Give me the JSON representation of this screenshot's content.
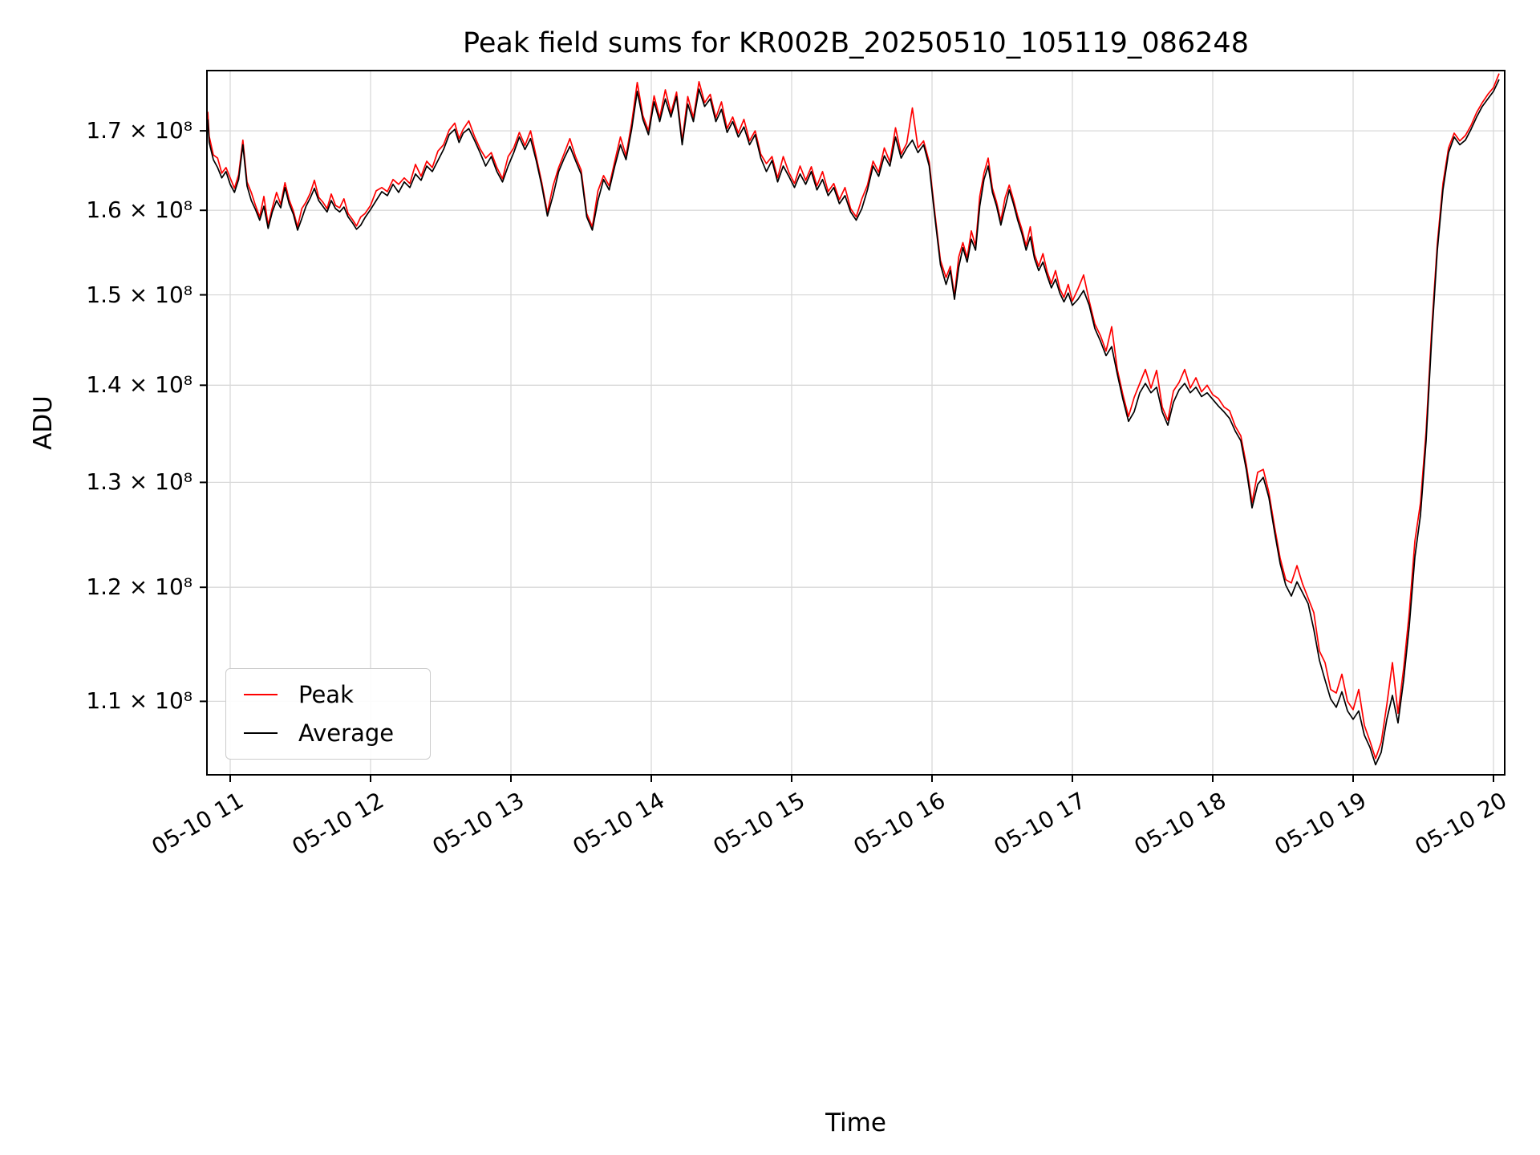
{
  "title": "Peak field sums for KR002B_20250510_105119_086248",
  "legend": {
    "position": "lower left",
    "items": [
      {
        "label": "Peak",
        "color": "#ff0000"
      },
      {
        "label": "Average",
        "color": "#000000"
      }
    ]
  },
  "chart_data": {
    "type": "line",
    "title": "Peak field sums for KR002B_20250510_105119_086248",
    "xlabel": "Time",
    "ylabel": "ADU",
    "yscale": "log",
    "grid": true,
    "grid_color": "#d9d9d9",
    "legend_position": "lower left",
    "x_unit": "decimal hours on 2025-05-10",
    "y_scale_factor": 100000000,
    "xlim": [
      10.834,
      20.08
    ],
    "ylim": [
      1.04,
      1.78
    ],
    "x_ticks": [
      11,
      12,
      13,
      14,
      15,
      16,
      17,
      18,
      19,
      20
    ],
    "x_tick_labels": [
      "05-10 11",
      "05-10 12",
      "05-10 13",
      "05-10 14",
      "05-10 15",
      "05-10 16",
      "05-10 17",
      "05-10 18",
      "05-10 19",
      "05-10 20"
    ],
    "y_ticks": [
      1.1,
      1.2,
      1.3,
      1.4,
      1.5,
      1.6,
      1.7
    ],
    "y_tick_labels": [
      "1.1 × 10⁸",
      "1.2 × 10⁸",
      "1.3 × 10⁸",
      "1.4 × 10⁸",
      "1.5 × 10⁸",
      "1.6 × 10⁸",
      "1.7 × 10⁸"
    ],
    "x": [
      10.84,
      10.85,
      10.88,
      10.91,
      10.94,
      10.97,
      11.0,
      11.03,
      11.06,
      11.09,
      11.12,
      11.15,
      11.18,
      11.21,
      11.24,
      11.27,
      11.3,
      11.33,
      11.36,
      11.39,
      11.42,
      11.45,
      11.48,
      11.51,
      11.54,
      11.57,
      11.6,
      11.63,
      11.66,
      11.69,
      11.72,
      11.75,
      11.78,
      11.81,
      11.84,
      11.87,
      11.9,
      11.93,
      11.96,
      12.0,
      12.04,
      12.08,
      12.12,
      12.16,
      12.2,
      12.24,
      12.28,
      12.32,
      12.36,
      12.4,
      12.44,
      12.48,
      12.52,
      12.56,
      12.6,
      12.63,
      12.66,
      12.7,
      12.74,
      12.78,
      12.82,
      12.86,
      12.9,
      12.94,
      12.98,
      13.02,
      13.06,
      13.1,
      13.14,
      13.18,
      13.22,
      13.26,
      13.3,
      13.34,
      13.38,
      13.42,
      13.46,
      13.5,
      13.54,
      13.58,
      13.62,
      13.66,
      13.7,
      13.74,
      13.78,
      13.82,
      13.86,
      13.9,
      13.94,
      13.98,
      14.02,
      14.06,
      14.1,
      14.14,
      14.18,
      14.22,
      14.26,
      14.3,
      14.34,
      14.38,
      14.42,
      14.46,
      14.5,
      14.54,
      14.58,
      14.62,
      14.66,
      14.7,
      14.74,
      14.78,
      14.82,
      14.86,
      14.9,
      14.94,
      14.98,
      15.02,
      15.06,
      15.1,
      15.14,
      15.18,
      15.22,
      15.26,
      15.3,
      15.34,
      15.38,
      15.42,
      15.46,
      15.5,
      15.54,
      15.58,
      15.62,
      15.66,
      15.7,
      15.74,
      15.78,
      15.82,
      15.86,
      15.9,
      15.94,
      15.98,
      16.02,
      16.06,
      16.1,
      16.13,
      16.16,
      16.19,
      16.22,
      16.25,
      16.28,
      16.31,
      16.34,
      16.37,
      16.4,
      16.43,
      16.46,
      16.49,
      16.52,
      16.55,
      16.58,
      16.61,
      16.64,
      16.67,
      16.7,
      16.73,
      16.76,
      16.79,
      16.82,
      16.85,
      16.88,
      16.91,
      16.94,
      16.97,
      17.0,
      17.04,
      17.08,
      17.12,
      17.16,
      17.2,
      17.24,
      17.28,
      17.32,
      17.36,
      17.4,
      17.44,
      17.48,
      17.52,
      17.56,
      17.6,
      17.64,
      17.68,
      17.72,
      17.76,
      17.8,
      17.84,
      17.88,
      17.92,
      17.96,
      18.0,
      18.04,
      18.08,
      18.12,
      18.16,
      18.2,
      18.24,
      18.28,
      18.32,
      18.36,
      18.4,
      18.44,
      18.48,
      18.52,
      18.56,
      18.6,
      18.64,
      18.68,
      18.72,
      18.76,
      18.8,
      18.84,
      18.88,
      18.92,
      18.96,
      19.0,
      19.04,
      19.08,
      19.12,
      19.16,
      19.2,
      19.24,
      19.28,
      19.32,
      19.36,
      19.4,
      19.44,
      19.48,
      19.52,
      19.56,
      19.6,
      19.64,
      19.68,
      19.72,
      19.76,
      19.8,
      19.84,
      19.88,
      19.92,
      19.96,
      20.0,
      20.04
    ],
    "series": [
      {
        "name": "Peak",
        "color": "#ff0000",
        "values": [
          1.725,
          1.693,
          1.669,
          1.665,
          1.646,
          1.653,
          1.64,
          1.627,
          1.644,
          1.688,
          1.635,
          1.622,
          1.606,
          1.592,
          1.617,
          1.582,
          1.603,
          1.622,
          1.607,
          1.634,
          1.613,
          1.599,
          1.58,
          1.602,
          1.61,
          1.621,
          1.637,
          1.616,
          1.61,
          1.602,
          1.62,
          1.606,
          1.603,
          1.614,
          1.596,
          1.589,
          1.581,
          1.592,
          1.596,
          1.606,
          1.624,
          1.628,
          1.623,
          1.638,
          1.632,
          1.64,
          1.633,
          1.657,
          1.642,
          1.661,
          1.653,
          1.674,
          1.682,
          1.701,
          1.71,
          1.69,
          1.702,
          1.713,
          1.693,
          1.677,
          1.665,
          1.672,
          1.653,
          1.639,
          1.667,
          1.678,
          1.698,
          1.681,
          1.7,
          1.667,
          1.634,
          1.597,
          1.63,
          1.653,
          1.671,
          1.69,
          1.667,
          1.65,
          1.596,
          1.58,
          1.624,
          1.643,
          1.63,
          1.661,
          1.692,
          1.668,
          1.71,
          1.764,
          1.72,
          1.7,
          1.746,
          1.717,
          1.754,
          1.723,
          1.751,
          1.687,
          1.745,
          1.717,
          1.765,
          1.737,
          1.748,
          1.717,
          1.738,
          1.703,
          1.718,
          1.697,
          1.715,
          1.687,
          1.7,
          1.67,
          1.658,
          1.667,
          1.64,
          1.667,
          1.647,
          1.633,
          1.655,
          1.637,
          1.654,
          1.63,
          1.648,
          1.623,
          1.633,
          1.613,
          1.628,
          1.602,
          1.592,
          1.614,
          1.631,
          1.661,
          1.647,
          1.678,
          1.66,
          1.704,
          1.67,
          1.684,
          1.73,
          1.678,
          1.687,
          1.66,
          1.597,
          1.54,
          1.52,
          1.533,
          1.499,
          1.544,
          1.561,
          1.543,
          1.575,
          1.557,
          1.617,
          1.646,
          1.665,
          1.627,
          1.61,
          1.587,
          1.615,
          1.631,
          1.613,
          1.593,
          1.577,
          1.557,
          1.58,
          1.547,
          1.533,
          1.548,
          1.527,
          1.513,
          1.528,
          1.507,
          1.497,
          1.512,
          1.493,
          1.507,
          1.523,
          1.493,
          1.467,
          1.454,
          1.437,
          1.464,
          1.417,
          1.39,
          1.367,
          1.387,
          1.402,
          1.417,
          1.397,
          1.416,
          1.377,
          1.363,
          1.394,
          1.403,
          1.417,
          1.397,
          1.408,
          1.393,
          1.4,
          1.39,
          1.386,
          1.377,
          1.373,
          1.357,
          1.347,
          1.317,
          1.28,
          1.31,
          1.313,
          1.29,
          1.257,
          1.227,
          1.207,
          1.204,
          1.22,
          1.203,
          1.19,
          1.177,
          1.143,
          1.133,
          1.11,
          1.107,
          1.123,
          1.1,
          1.093,
          1.11,
          1.08,
          1.067,
          1.053,
          1.066,
          1.097,
          1.133,
          1.09,
          1.128,
          1.177,
          1.243,
          1.28,
          1.352,
          1.462,
          1.56,
          1.633,
          1.678,
          1.697,
          1.687,
          1.694,
          1.707,
          1.724,
          1.737,
          1.748,
          1.757,
          1.776
        ]
      },
      {
        "name": "Average",
        "color": "#000000",
        "values": [
          1.715,
          1.685,
          1.663,
          1.653,
          1.64,
          1.648,
          1.632,
          1.622,
          1.638,
          1.682,
          1.63,
          1.612,
          1.601,
          1.588,
          1.605,
          1.578,
          1.598,
          1.612,
          1.603,
          1.628,
          1.608,
          1.595,
          1.576,
          1.59,
          1.605,
          1.615,
          1.627,
          1.612,
          1.605,
          1.598,
          1.612,
          1.602,
          1.598,
          1.604,
          1.592,
          1.585,
          1.577,
          1.582,
          1.591,
          1.601,
          1.612,
          1.623,
          1.618,
          1.632,
          1.622,
          1.635,
          1.628,
          1.645,
          1.637,
          1.655,
          1.648,
          1.662,
          1.676,
          1.695,
          1.702,
          1.685,
          1.697,
          1.703,
          1.688,
          1.672,
          1.655,
          1.667,
          1.648,
          1.635,
          1.655,
          1.672,
          1.692,
          1.676,
          1.69,
          1.662,
          1.63,
          1.593,
          1.618,
          1.648,
          1.665,
          1.68,
          1.662,
          1.645,
          1.592,
          1.576,
          1.612,
          1.638,
          1.625,
          1.655,
          1.682,
          1.663,
          1.702,
          1.752,
          1.715,
          1.695,
          1.738,
          1.712,
          1.742,
          1.718,
          1.745,
          1.682,
          1.735,
          1.712,
          1.755,
          1.732,
          1.742,
          1.712,
          1.728,
          1.698,
          1.712,
          1.692,
          1.705,
          1.682,
          1.695,
          1.665,
          1.648,
          1.662,
          1.635,
          1.655,
          1.642,
          1.628,
          1.645,
          1.632,
          1.648,
          1.625,
          1.638,
          1.618,
          1.628,
          1.608,
          1.618,
          1.598,
          1.588,
          1.602,
          1.625,
          1.655,
          1.642,
          1.668,
          1.655,
          1.692,
          1.665,
          1.678,
          1.688,
          1.672,
          1.682,
          1.655,
          1.592,
          1.535,
          1.512,
          1.528,
          1.495,
          1.532,
          1.555,
          1.538,
          1.565,
          1.552,
          1.605,
          1.638,
          1.655,
          1.622,
          1.605,
          1.582,
          1.603,
          1.625,
          1.608,
          1.588,
          1.572,
          1.552,
          1.568,
          1.542,
          1.528,
          1.538,
          1.522,
          1.508,
          1.518,
          1.502,
          1.492,
          1.502,
          1.488,
          1.495,
          1.505,
          1.488,
          1.462,
          1.448,
          1.432,
          1.442,
          1.412,
          1.385,
          1.362,
          1.372,
          1.392,
          1.402,
          1.392,
          1.398,
          1.372,
          1.358,
          1.382,
          1.395,
          1.402,
          1.392,
          1.398,
          1.388,
          1.392,
          1.385,
          1.378,
          1.372,
          1.365,
          1.352,
          1.342,
          1.312,
          1.275,
          1.298,
          1.305,
          1.285,
          1.252,
          1.222,
          1.202,
          1.192,
          1.205,
          1.195,
          1.185,
          1.162,
          1.135,
          1.118,
          1.102,
          1.095,
          1.108,
          1.092,
          1.085,
          1.092,
          1.072,
          1.062,
          1.048,
          1.058,
          1.085,
          1.105,
          1.082,
          1.118,
          1.165,
          1.228,
          1.268,
          1.342,
          1.452,
          1.552,
          1.625,
          1.672,
          1.692,
          1.682,
          1.688,
          1.702,
          1.718,
          1.732,
          1.742,
          1.752,
          1.768
        ]
      }
    ]
  }
}
